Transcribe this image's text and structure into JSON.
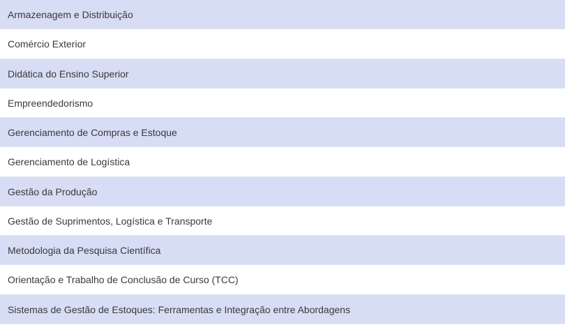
{
  "list": {
    "items": [
      "Armazenagem e Distribuição",
      "Comércio Exterior",
      "Didática do Ensino Superior",
      "Empreendedorismo",
      "Gerenciamento de Compras e Estoque",
      "Gerenciamento de Logística",
      "Gestão da Produção",
      "Gestão de Suprimentos, Logística e Transporte",
      "Metodologia da Pesquisa Científica",
      "Orientação e Trabalho de Conclusão de Curso (TCC)",
      "Sistemas de Gestão de Estoques: Ferramentas e Integração entre Abordagens"
    ]
  }
}
